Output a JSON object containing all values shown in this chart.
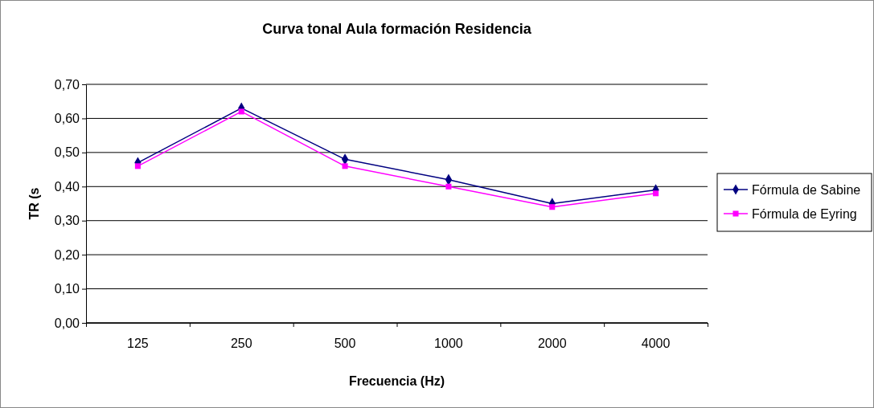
{
  "chart_data": {
    "type": "line",
    "title": "Curva tonal Aula formación Residencia",
    "xlabel": "Frecuencia (Hz)",
    "ylabel": "TR (s",
    "categories": [
      "125",
      "250",
      "500",
      "1000",
      "2000",
      "4000"
    ],
    "series": [
      {
        "name": "Fórmula de Sabine",
        "color": "#000080",
        "marker": "diamond",
        "values": [
          0.47,
          0.63,
          0.48,
          0.42,
          0.35,
          0.39
        ]
      },
      {
        "name": "Fórmula de Eyring",
        "color": "#ff00ff",
        "marker": "square",
        "values": [
          0.46,
          0.62,
          0.46,
          0.4,
          0.34,
          0.38
        ]
      }
    ],
    "ylim": [
      0,
      0.7
    ],
    "yticks": [
      {
        "value": 0,
        "label": "0,00"
      },
      {
        "value": 0.1,
        "label": "0,10"
      },
      {
        "value": 0.2,
        "label": "0,20"
      },
      {
        "value": 0.3,
        "label": "0,30"
      },
      {
        "value": 0.4,
        "label": "0,40"
      },
      {
        "value": 0.5,
        "label": "0,50"
      },
      {
        "value": 0.6,
        "label": "0,60"
      },
      {
        "value": 0.7,
        "label": "0,70"
      }
    ],
    "grid": "y",
    "legend": "right"
  }
}
